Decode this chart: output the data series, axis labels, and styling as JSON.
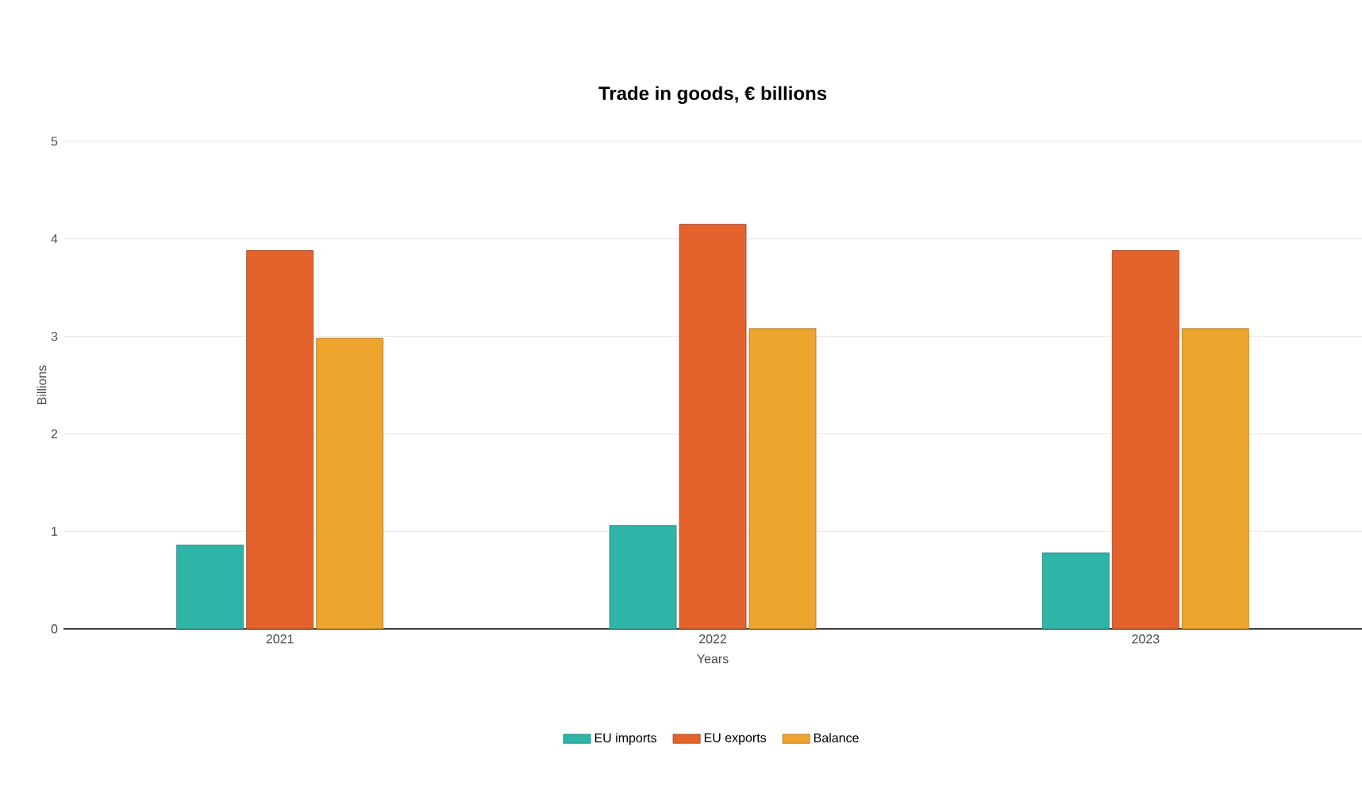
{
  "chart_data": {
    "type": "bar",
    "title": "Trade in goods, € billions",
    "xlabel": "Years",
    "ylabel": "Billions",
    "categories": [
      "2021",
      "2022",
      "2023"
    ],
    "series": [
      {
        "name": "EU imports",
        "color": "#2fb5a8",
        "values": [
          0.86,
          1.06,
          0.78
        ]
      },
      {
        "name": "EU exports",
        "color": "#e4632d",
        "values": [
          3.88,
          4.15,
          3.88
        ]
      },
      {
        "name": "Balance",
        "color": "#eea52e",
        "values": [
          2.98,
          3.08,
          3.08
        ]
      }
    ],
    "ylim": [
      0,
      5
    ],
    "yticks": [
      0,
      1,
      2,
      3,
      4,
      5
    ],
    "grid": "y",
    "legend": "bottom"
  }
}
